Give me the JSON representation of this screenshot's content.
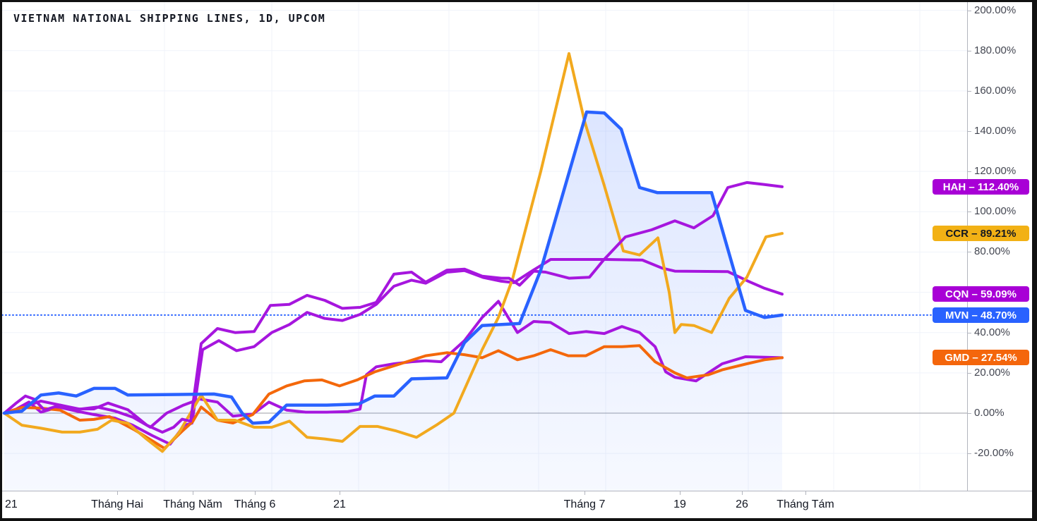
{
  "title": "VIETNAM NATIONAL SHIPPING LINES, 1D, UPCOM",
  "colors": {
    "background": "#ffffff",
    "grid": "#f0f3fa",
    "zero_line": "#9b9ea6",
    "axis_border": "#b2b5be",
    "axis_text": "#434651",
    "time_text": "#131722",
    "blue": "#2962ff",
    "purple": "#a616de",
    "amber": "#f2a91e",
    "orange": "#f4680b",
    "badge_purple": "#a800d6",
    "badge_amber": "#f2b115",
    "badge_blue": "#2962ff",
    "badge_orange": "#f4660c",
    "area_fill_top": "rgba(41,98,255,0.16)",
    "area_fill_bottom": "rgba(41,98,255,0.04)"
  },
  "badges": [
    {
      "ticker": "HAH",
      "value_pct": 112.4,
      "label": "HAH – 112.40%",
      "bg": "#a800d6",
      "text_color": "#ffffff"
    },
    {
      "ticker": "CCR",
      "value_pct": 89.21,
      "label": "CCR – 89.21%",
      "bg": "#f2b115",
      "text_color": "#131722"
    },
    {
      "ticker": "CQN",
      "value_pct": 59.09,
      "label": "CQN – 59.09%",
      "bg": "#a800d6",
      "text_color": "#ffffff"
    },
    {
      "ticker": "MVN",
      "value_pct": 48.7,
      "label": "MVN – 48.70%",
      "bg": "#2962ff",
      "text_color": "#ffffff"
    },
    {
      "ticker": "GMD",
      "value_pct": 27.54,
      "label": "GMD – 27.54%",
      "bg": "#f4660c",
      "text_color": "#ffffff"
    }
  ],
  "chart_data": {
    "type": "line",
    "title": "VIETNAM NATIONAL SHIPPING LINES, 1D, UPCOM",
    "y_unit": "percent_change",
    "ylim": [
      -33,
      204
    ],
    "grid": true,
    "zero_line_pct": 0,
    "last_value_line": {
      "series": "MVN",
      "pct": 48.7,
      "style": "dotted",
      "color": "#2962ff"
    },
    "y_axis": {
      "grid_pcts": [
        200,
        180,
        160,
        140,
        120,
        100,
        80,
        60,
        40,
        20,
        -20
      ],
      "labels": [
        {
          "text": "200.00%",
          "pct": 200
        },
        {
          "text": "180.00%",
          "pct": 180
        },
        {
          "text": "160.00%",
          "pct": 160
        },
        {
          "text": "140.00%",
          "pct": 140
        },
        {
          "text": "120.00%",
          "pct": 120
        },
        {
          "text": "100.00%",
          "pct": 100
        },
        {
          "text": "80.00%",
          "pct": 80
        },
        {
          "text": "40.00%",
          "pct": 40
        },
        {
          "text": "20.00%",
          "pct": 20
        },
        {
          "text": "0.00%",
          "pct": 0
        },
        {
          "text": "-20.00%",
          "pct": -20
        }
      ]
    },
    "x_axis": {
      "labels": [
        {
          "text": "21",
          "x": 8,
          "edge": true
        },
        {
          "text": "Tháng Hai",
          "x": 163
        },
        {
          "text": "Tháng Năm",
          "x": 270
        },
        {
          "text": "Tháng 6",
          "x": 358
        },
        {
          "text": "21",
          "x": 478
        },
        {
          "text": "Tháng 7",
          "x": 825
        },
        {
          "text": "19",
          "x": 960
        },
        {
          "text": "26",
          "x": 1048
        },
        {
          "text": "Tháng Tám",
          "x": 1138
        }
      ],
      "gridlines_x": [
        230,
        382,
        505,
        633,
        760,
        855,
        1057,
        1178,
        1300
      ]
    },
    "series": [
      {
        "name": "CQN",
        "color": "#a616de",
        "width": 4,
        "final_pct": 59.09,
        "label_visible": true,
        "points": [
          [
            3,
            0
          ],
          [
            20,
            2
          ],
          [
            38,
            5.5
          ],
          [
            55,
            0.5
          ],
          [
            80,
            3
          ],
          [
            105,
            1
          ],
          [
            130,
            -0.7
          ],
          [
            160,
            -2.5
          ],
          [
            185,
            -6
          ],
          [
            213,
            -11.2
          ],
          [
            238,
            -15.4
          ],
          [
            258,
            -6
          ],
          [
            269,
            -5
          ],
          [
            284,
            31.5
          ],
          [
            307,
            36
          ],
          [
            332,
            31
          ],
          [
            357,
            33
          ],
          [
            382,
            40
          ],
          [
            407,
            44
          ],
          [
            432,
            50
          ],
          [
            457,
            47
          ],
          [
            482,
            46
          ],
          [
            507,
            49
          ],
          [
            530,
            54
          ],
          [
            555,
            63
          ],
          [
            580,
            66
          ],
          [
            600,
            64.5
          ],
          [
            630,
            70
          ],
          [
            655,
            70.8
          ],
          [
            682,
            67.3
          ],
          [
            707,
            65.5
          ],
          [
            725,
            64.8
          ],
          [
            748,
            70
          ],
          [
            777,
            76.3
          ],
          [
            855,
            76.3
          ],
          [
            907,
            76
          ],
          [
            935,
            72
          ],
          [
            953,
            70.5
          ],
          [
            1028,
            70.3
          ],
          [
            1057,
            65.5
          ],
          [
            1080,
            62
          ],
          [
            1105,
            59.09
          ]
        ]
      },
      {
        "name": "",
        "color": "#a616de",
        "width": 4,
        "final_pct": 27.5,
        "label_visible": false,
        "points": [
          [
            3,
            0
          ],
          [
            30,
            3
          ],
          [
            55,
            6
          ],
          [
            82,
            4
          ],
          [
            110,
            2
          ],
          [
            135,
            3
          ],
          [
            160,
            1
          ],
          [
            185,
            -2
          ],
          [
            210,
            -7
          ],
          [
            233,
            0
          ],
          [
            257,
            4
          ],
          [
            280,
            7
          ],
          [
            305,
            5.5
          ],
          [
            327,
            -1.5
          ],
          [
            355,
            -0.5
          ],
          [
            378,
            5.5
          ],
          [
            403,
            1.5
          ],
          [
            430,
            0.5
          ],
          [
            460,
            0.5
          ],
          [
            490,
            0.8
          ],
          [
            507,
            2
          ],
          [
            516,
            19
          ],
          [
            530,
            23
          ],
          [
            555,
            24.5
          ],
          [
            580,
            25.5
          ],
          [
            600,
            26
          ],
          [
            622,
            25.5
          ],
          [
            655,
            36
          ],
          [
            680,
            47.5
          ],
          [
            703,
            55.5
          ],
          [
            730,
            40
          ],
          [
            753,
            45.5
          ],
          [
            777,
            45
          ],
          [
            803,
            39.5
          ],
          [
            827,
            40.5
          ],
          [
            853,
            39.5
          ],
          [
            878,
            43
          ],
          [
            903,
            40
          ],
          [
            925,
            33
          ],
          [
            940,
            20.5
          ],
          [
            953,
            17.8
          ],
          [
            983,
            16
          ],
          [
            1020,
            24.5
          ],
          [
            1053,
            28
          ],
          [
            1105,
            27.5
          ]
        ]
      },
      {
        "name": "GMD",
        "color": "#f4680b",
        "width": 4,
        "final_pct": 27.54,
        "label_visible": true,
        "points": [
          [
            3,
            0
          ],
          [
            28,
            2.8
          ],
          [
            55,
            2.5
          ],
          [
            82,
            1.5
          ],
          [
            110,
            -3.5
          ],
          [
            130,
            -3.1
          ],
          [
            152,
            -1.7
          ],
          [
            188,
            -8.4
          ],
          [
            230,
            -17.5
          ],
          [
            255,
            -9
          ],
          [
            270,
            -4.2
          ],
          [
            282,
            3
          ],
          [
            305,
            -3.5
          ],
          [
            327,
            -4.9
          ],
          [
            355,
            -0.7
          ],
          [
            378,
            9.5
          ],
          [
            403,
            13.5
          ],
          [
            428,
            16
          ],
          [
            453,
            16.5
          ],
          [
            478,
            13.5
          ],
          [
            503,
            16.5
          ],
          [
            528,
            20.5
          ],
          [
            560,
            24
          ],
          [
            600,
            28.5
          ],
          [
            630,
            30
          ],
          [
            655,
            29
          ],
          [
            680,
            27.5
          ],
          [
            703,
            31
          ],
          [
            730,
            26.5
          ],
          [
            753,
            28.5
          ],
          [
            777,
            31.5
          ],
          [
            802,
            28.5
          ],
          [
            827,
            28.5
          ],
          [
            853,
            33
          ],
          [
            878,
            33
          ],
          [
            903,
            33.5
          ],
          [
            925,
            25.5
          ],
          [
            953,
            20
          ],
          [
            970,
            17.5
          ],
          [
            1000,
            19
          ],
          [
            1020,
            21.5
          ],
          [
            1055,
            24.5
          ],
          [
            1080,
            26.5
          ],
          [
            1105,
            27.54
          ]
        ]
      },
      {
        "name": "CCR",
        "color": "#f2a91e",
        "width": 4,
        "final_pct": 89.21,
        "label_visible": true,
        "points": [
          [
            3,
            0
          ],
          [
            28,
            -6
          ],
          [
            55,
            -7.5
          ],
          [
            85,
            -9.4
          ],
          [
            110,
            -9.4
          ],
          [
            135,
            -8
          ],
          [
            155,
            -3.5
          ],
          [
            178,
            -5
          ],
          [
            205,
            -13
          ],
          [
            227,
            -19
          ],
          [
            250,
            -10
          ],
          [
            282,
            9
          ],
          [
            305,
            -3.5
          ],
          [
            330,
            -3.5
          ],
          [
            357,
            -7
          ],
          [
            382,
            -7
          ],
          [
            407,
            -4
          ],
          [
            432,
            -12
          ],
          [
            457,
            -12.8
          ],
          [
            482,
            -14
          ],
          [
            507,
            -6.6
          ],
          [
            532,
            -6.6
          ],
          [
            557,
            -8.7
          ],
          [
            587,
            -12
          ],
          [
            615,
            -6
          ],
          [
            640,
            0
          ],
          [
            680,
            31.5
          ],
          [
            703,
            47.5
          ],
          [
            723,
            66.5
          ],
          [
            763,
            120
          ],
          [
            803,
            178.5
          ],
          [
            825,
            145
          ],
          [
            853,
            113
          ],
          [
            880,
            80.5
          ],
          [
            903,
            78.5
          ],
          [
            929,
            87
          ],
          [
            945,
            60
          ],
          [
            953,
            40
          ],
          [
            962,
            44
          ],
          [
            980,
            43.5
          ],
          [
            1005,
            40
          ],
          [
            1030,
            57
          ],
          [
            1055,
            67.5
          ],
          [
            1082,
            87.5
          ],
          [
            1105,
            89.21
          ]
        ]
      },
      {
        "name": "HAH",
        "color": "#a616de",
        "width": 4,
        "final_pct": 112.4,
        "label_visible": true,
        "points": [
          [
            3,
            0
          ],
          [
            20,
            5
          ],
          [
            33,
            8.5
          ],
          [
            45,
            7
          ],
          [
            60,
            1.5
          ],
          [
            82,
            4
          ],
          [
            105,
            2
          ],
          [
            130,
            2.1
          ],
          [
            150,
            5
          ],
          [
            178,
            1.7
          ],
          [
            205,
            -6
          ],
          [
            227,
            -9.5
          ],
          [
            243,
            -7
          ],
          [
            255,
            -3
          ],
          [
            267,
            -4
          ],
          [
            282,
            34.5
          ],
          [
            305,
            42
          ],
          [
            330,
            40
          ],
          [
            357,
            40.5
          ],
          [
            380,
            53.5
          ],
          [
            407,
            54
          ],
          [
            432,
            58.5
          ],
          [
            457,
            56
          ],
          [
            482,
            52
          ],
          [
            507,
            52.5
          ],
          [
            530,
            55
          ],
          [
            555,
            69
          ],
          [
            580,
            70
          ],
          [
            600,
            65
          ],
          [
            630,
            71
          ],
          [
            655,
            71.5
          ],
          [
            680,
            68
          ],
          [
            707,
            67
          ],
          [
            718,
            67
          ],
          [
            733,
            63.5
          ],
          [
            753,
            70.5
          ],
          [
            770,
            70
          ],
          [
            803,
            67
          ],
          [
            832,
            67.5
          ],
          [
            852,
            76
          ],
          [
            883,
            87.5
          ],
          [
            920,
            91
          ],
          [
            953,
            95.5
          ],
          [
            980,
            92
          ],
          [
            1007,
            98
          ],
          [
            1028,
            112
          ],
          [
            1055,
            114.5
          ],
          [
            1080,
            113.5
          ],
          [
            1105,
            112.4
          ]
        ]
      },
      {
        "name": "MVN",
        "color": "#2962ff",
        "width": 4.5,
        "final_pct": 48.7,
        "label_visible": true,
        "area_fill": true,
        "points": [
          [
            3,
            0
          ],
          [
            28,
            1
          ],
          [
            55,
            9
          ],
          [
            80,
            10
          ],
          [
            105,
            8.5
          ],
          [
            130,
            12.3
          ],
          [
            160,
            12.3
          ],
          [
            178,
            9
          ],
          [
            300,
            9.5
          ],
          [
            325,
            8
          ],
          [
            340,
            0
          ],
          [
            355,
            -5
          ],
          [
            378,
            -4.5
          ],
          [
            403,
            4
          ],
          [
            460,
            4
          ],
          [
            505,
            4.5
          ],
          [
            528,
            8.5
          ],
          [
            555,
            8.5
          ],
          [
            580,
            17
          ],
          [
            630,
            17.5
          ],
          [
            655,
            35
          ],
          [
            680,
            43.5
          ],
          [
            733,
            44.5
          ],
          [
            763,
            71
          ],
          [
            828,
            149.5
          ],
          [
            853,
            149
          ],
          [
            877,
            141
          ],
          [
            903,
            112
          ],
          [
            928,
            109.5
          ],
          [
            1005,
            109.5
          ],
          [
            1053,
            51
          ],
          [
            1080,
            47.5
          ],
          [
            1105,
            48.7
          ]
        ]
      }
    ]
  }
}
